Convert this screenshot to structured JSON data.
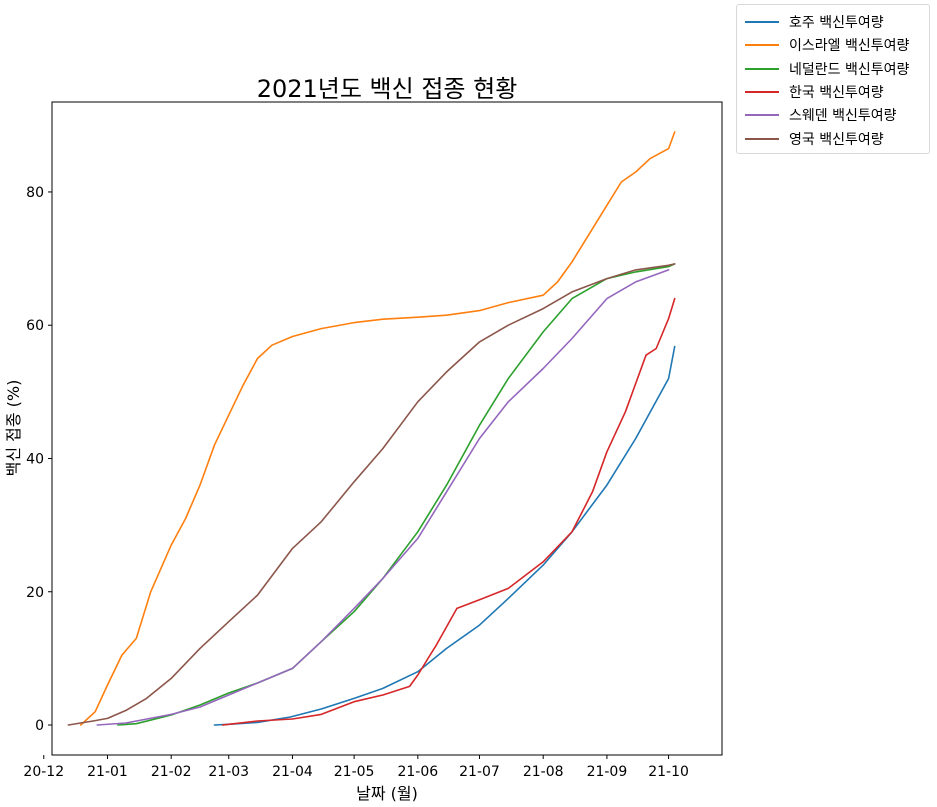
{
  "chart_data": {
    "type": "line",
    "title": "2021년도 백신 접종 현황",
    "xlabel": "날짜 (월)",
    "ylabel": "백신 접종 (%)",
    "xlim": [
      "2020-12-05",
      "2021-10-27"
    ],
    "ylim": [
      -4.5,
      93.5
    ],
    "x_ticks": [
      {
        "date": "2020-12-01",
        "label": "20-12"
      },
      {
        "date": "2021-01-01",
        "label": "21-01"
      },
      {
        "date": "2021-02-01",
        "label": "21-02"
      },
      {
        "date": "2021-03-01",
        "label": "21-03"
      },
      {
        "date": "2021-04-01",
        "label": "21-04"
      },
      {
        "date": "2021-05-01",
        "label": "21-05"
      },
      {
        "date": "2021-06-01",
        "label": "21-06"
      },
      {
        "date": "2021-07-01",
        "label": "21-07"
      },
      {
        "date": "2021-08-01",
        "label": "21-08"
      },
      {
        "date": "2021-09-01",
        "label": "21-09"
      },
      {
        "date": "2021-10-01",
        "label": "21-10"
      }
    ],
    "y_ticks": [
      0,
      20,
      40,
      60,
      80
    ],
    "grid": false,
    "legend": "outside-top-right",
    "series": [
      {
        "name": "호주 백신투여량",
        "color": "#1f77b4",
        "points": [
          [
            "2021-02-22",
            0
          ],
          [
            "2021-03-01",
            0.1
          ],
          [
            "2021-03-15",
            0.4
          ],
          [
            "2021-03-31",
            1.2
          ],
          [
            "2021-04-15",
            2.4
          ],
          [
            "2021-05-01",
            4
          ],
          [
            "2021-05-15",
            5.5
          ],
          [
            "2021-06-01",
            8
          ],
          [
            "2021-06-15",
            11.5
          ],
          [
            "2021-07-01",
            15
          ],
          [
            "2021-07-15",
            19
          ],
          [
            "2021-08-01",
            24
          ],
          [
            "2021-08-15",
            29
          ],
          [
            "2021-09-01",
            36
          ],
          [
            "2021-09-15",
            43
          ],
          [
            "2021-10-01",
            52
          ],
          [
            "2021-10-04",
            56.8
          ]
        ]
      },
      {
        "name": "이스라엘 백신투여량",
        "color": "#ff7f0e",
        "points": [
          [
            "2020-12-19",
            0
          ],
          [
            "2020-12-26",
            2
          ],
          [
            "2021-01-01",
            6
          ],
          [
            "2021-01-08",
            10.5
          ],
          [
            "2021-01-15",
            13
          ],
          [
            "2021-01-22",
            20
          ],
          [
            "2021-02-01",
            27
          ],
          [
            "2021-02-08",
            31
          ],
          [
            "2021-02-15",
            36
          ],
          [
            "2021-02-22",
            42
          ],
          [
            "2021-03-01",
            46.5
          ],
          [
            "2021-03-08",
            51
          ],
          [
            "2021-03-15",
            55
          ],
          [
            "2021-03-22",
            57
          ],
          [
            "2021-04-01",
            58.3
          ],
          [
            "2021-04-15",
            59.5
          ],
          [
            "2021-05-01",
            60.4
          ],
          [
            "2021-05-15",
            60.9
          ],
          [
            "2021-06-01",
            61.2
          ],
          [
            "2021-06-15",
            61.5
          ],
          [
            "2021-07-01",
            62.2
          ],
          [
            "2021-07-15",
            63.4
          ],
          [
            "2021-08-01",
            64.5
          ],
          [
            "2021-08-08",
            66.5
          ],
          [
            "2021-08-15",
            69.5
          ],
          [
            "2021-08-22",
            73
          ],
          [
            "2021-09-01",
            78
          ],
          [
            "2021-09-08",
            81.5
          ],
          [
            "2021-09-15",
            83
          ],
          [
            "2021-09-22",
            85
          ],
          [
            "2021-10-01",
            86.5
          ],
          [
            "2021-10-04",
            89
          ]
        ]
      },
      {
        "name": "네덜란드 백신투여량",
        "color": "#2ca02c",
        "points": [
          [
            "2021-01-06",
            0
          ],
          [
            "2021-01-15",
            0.2
          ],
          [
            "2021-02-01",
            1.5
          ],
          [
            "2021-02-15",
            3
          ],
          [
            "2021-03-01",
            4.8
          ],
          [
            "2021-03-15",
            6.3
          ],
          [
            "2021-04-01",
            8.5
          ],
          [
            "2021-04-15",
            12.5
          ],
          [
            "2021-05-01",
            17
          ],
          [
            "2021-05-15",
            22
          ],
          [
            "2021-06-01",
            29
          ],
          [
            "2021-06-15",
            36
          ],
          [
            "2021-07-01",
            45
          ],
          [
            "2021-07-15",
            52
          ],
          [
            "2021-08-01",
            59
          ],
          [
            "2021-08-15",
            64
          ],
          [
            "2021-09-01",
            67
          ],
          [
            "2021-09-15",
            68
          ],
          [
            "2021-10-01",
            68.8
          ],
          [
            "2021-10-04",
            69.2
          ]
        ]
      },
      {
        "name": "한국 백신투여량",
        "color": "#d62728",
        "points": [
          [
            "2021-02-26",
            0
          ],
          [
            "2021-03-01",
            0.1
          ],
          [
            "2021-03-15",
            0.6
          ],
          [
            "2021-04-01",
            0.9
          ],
          [
            "2021-04-15",
            1.6
          ],
          [
            "2021-05-01",
            3.5
          ],
          [
            "2021-05-15",
            4.5
          ],
          [
            "2021-05-28",
            5.8
          ],
          [
            "2021-06-01",
            7.5
          ],
          [
            "2021-06-10",
            12
          ],
          [
            "2021-06-20",
            17.5
          ],
          [
            "2021-07-01",
            18.8
          ],
          [
            "2021-07-15",
            20.5
          ],
          [
            "2021-08-01",
            24.5
          ],
          [
            "2021-08-15",
            29
          ],
          [
            "2021-08-25",
            35
          ],
          [
            "2021-09-01",
            41
          ],
          [
            "2021-09-10",
            47
          ],
          [
            "2021-09-20",
            55.5
          ],
          [
            "2021-09-25",
            56.5
          ],
          [
            "2021-10-01",
            61
          ],
          [
            "2021-10-04",
            64
          ]
        ]
      },
      {
        "name": "스웨덴 백신투여량",
        "color": "#9467bd",
        "points": [
          [
            "2020-12-27",
            0
          ],
          [
            "2021-01-10",
            0.3
          ],
          [
            "2021-02-01",
            1.6
          ],
          [
            "2021-02-15",
            2.7
          ],
          [
            "2021-03-01",
            4.5
          ],
          [
            "2021-03-15",
            6.3
          ],
          [
            "2021-04-01",
            8.5
          ],
          [
            "2021-04-15",
            12.5
          ],
          [
            "2021-05-01",
            17.5
          ],
          [
            "2021-05-15",
            22
          ],
          [
            "2021-06-01",
            28
          ],
          [
            "2021-06-15",
            35
          ],
          [
            "2021-07-01",
            43
          ],
          [
            "2021-07-15",
            48.5
          ],
          [
            "2021-08-01",
            53.5
          ],
          [
            "2021-08-15",
            58
          ],
          [
            "2021-09-01",
            64
          ],
          [
            "2021-09-15",
            66.5
          ],
          [
            "2021-10-01",
            68.3
          ]
        ]
      },
      {
        "name": "영국 백신투여량",
        "color": "#8c564b",
        "points": [
          [
            "2020-12-13",
            0
          ],
          [
            "2020-12-25",
            0.6
          ],
          [
            "2021-01-01",
            1
          ],
          [
            "2021-01-10",
            2.2
          ],
          [
            "2021-01-20",
            4
          ],
          [
            "2021-02-01",
            7
          ],
          [
            "2021-02-15",
            11.5
          ],
          [
            "2021-03-01",
            15.5
          ],
          [
            "2021-03-15",
            19.5
          ],
          [
            "2021-04-01",
            26.5
          ],
          [
            "2021-04-15",
            30.5
          ],
          [
            "2021-05-01",
            36.5
          ],
          [
            "2021-05-15",
            41.5
          ],
          [
            "2021-06-01",
            48.5
          ],
          [
            "2021-06-15",
            53
          ],
          [
            "2021-07-01",
            57.5
          ],
          [
            "2021-07-15",
            60
          ],
          [
            "2021-08-01",
            62.5
          ],
          [
            "2021-08-15",
            65
          ],
          [
            "2021-09-01",
            67
          ],
          [
            "2021-09-15",
            68.3
          ],
          [
            "2021-10-01",
            69
          ],
          [
            "2021-10-04",
            69.2
          ]
        ]
      }
    ]
  }
}
